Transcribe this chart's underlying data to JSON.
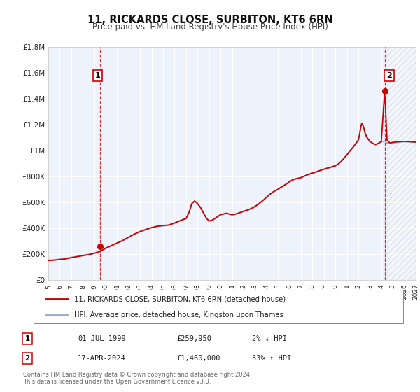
{
  "title": "11, RICKARDS CLOSE, SURBITON, KT6 6RN",
  "subtitle": "Price paid vs. HM Land Registry's House Price Index (HPI)",
  "background_color": "#ffffff",
  "plot_bg_color": "#eef2fa",
  "grid_color": "#ffffff",
  "hpi_line_color": "#99aacc",
  "property_line_color": "#cc0000",
  "sale1_date": 1999.5,
  "sale1_price": 259950,
  "sale2_date": 2024.29,
  "sale2_price": 1460000,
  "legend_line1": "11, RICKARDS CLOSE, SURBITON, KT6 6RN (detached house)",
  "legend_line2": "HPI: Average price, detached house, Kingston upon Thames",
  "table_row1": [
    "1",
    "01-JUL-1999",
    "£259,950",
    "2% ↓ HPI"
  ],
  "table_row2": [
    "2",
    "17-APR-2024",
    "£1,460,000",
    "33% ↑ HPI"
  ],
  "footnote1": "Contains HM Land Registry data © Crown copyright and database right 2024.",
  "footnote2": "This data is licensed under the Open Government Licence v3.0.",
  "xmin": 1995,
  "xmax": 2027,
  "ymin": 0,
  "ymax": 1800000,
  "yticks": [
    0,
    200000,
    400000,
    600000,
    800000,
    1000000,
    1200000,
    1400000,
    1600000,
    1800000
  ],
  "ytick_labels": [
    "£0",
    "£200K",
    "£400K",
    "£600K",
    "£800K",
    "£1M",
    "£1.2M",
    "£1.4M",
    "£1.6M",
    "£1.8M"
  ],
  "xticks": [
    1995,
    1996,
    1997,
    1998,
    1999,
    2000,
    2001,
    2002,
    2003,
    2004,
    2005,
    2006,
    2007,
    2008,
    2009,
    2010,
    2011,
    2012,
    2013,
    2014,
    2015,
    2016,
    2017,
    2018,
    2019,
    2020,
    2021,
    2022,
    2023,
    2024,
    2025,
    2026,
    2027
  ],
  "future_shade_start": 2024.5,
  "hatch_region_start": 2024.5
}
